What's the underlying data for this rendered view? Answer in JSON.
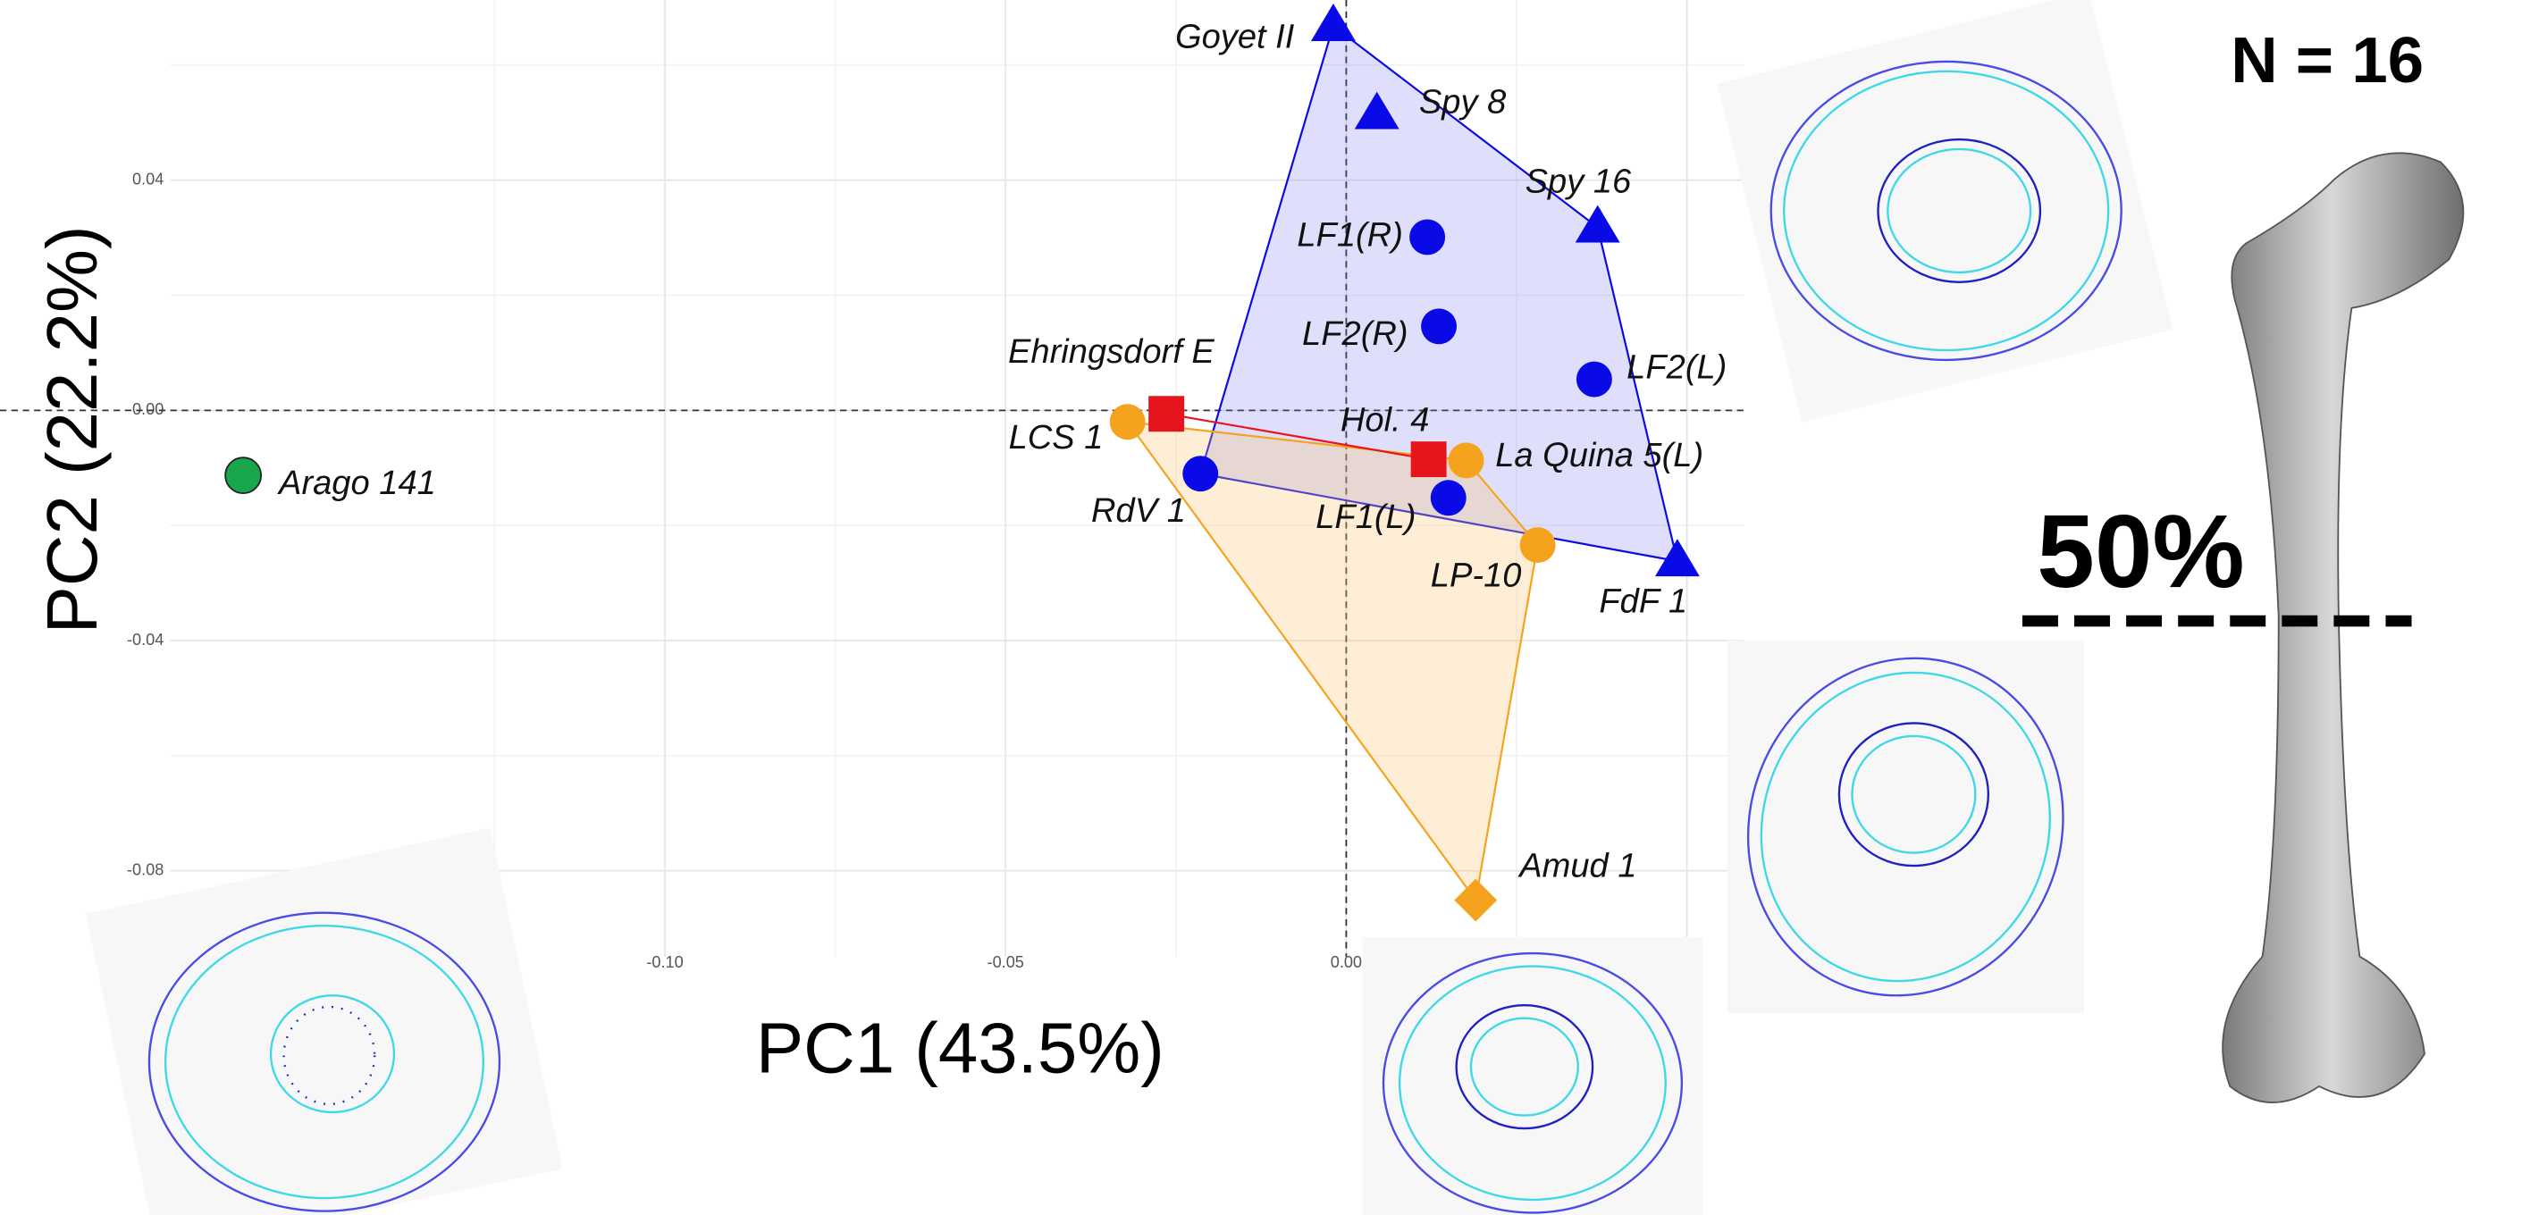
{
  "chart_data": {
    "type": "scatter",
    "xlabel": "PC1 (43.5%)",
    "ylabel": "PC2 (22.2%)",
    "xlim": [
      -0.1726,
      0.0583
    ],
    "ylim": [
      -0.0949,
      0.0713
    ],
    "xticks": [
      {
        "value": -0.1,
        "label": "-0.10"
      },
      -0.05,
      {
        "value": 0,
        "label": "0.00"
      },
      0.05
    ],
    "yticks": [
      -0.08,
      -0.04,
      {
        "value": 0,
        "label": "0.00"
      },
      0.04
    ],
    "grid": true,
    "zero_lines": true,
    "series": [
      {
        "color": "#0a0ae6",
        "hull_fill": "rgba(110,110,235,0.22)",
        "connect": "hull",
        "points": [
          {
            "label": "Goyet II",
            "x": -0.0019,
            "y": 0.0668,
            "marker": "triangle"
          },
          {
            "label": "Spy 8",
            "x": 0.0045,
            "y": 0.0515,
            "marker": "triangle"
          },
          {
            "label": "Spy 16",
            "x": 0.0369,
            "y": 0.0318,
            "marker": "triangle"
          },
          {
            "label": "FdF 1",
            "x": 0.0486,
            "y": -0.0262,
            "marker": "triangle"
          },
          {
            "label": "LF1(R)",
            "x": 0.0119,
            "y": 0.0301,
            "marker": "circle"
          },
          {
            "label": "LF2(R)",
            "x": 0.0136,
            "y": 0.0146,
            "marker": "circle"
          },
          {
            "label": "LF2(L)",
            "x": 0.0364,
            "y": 0.0054,
            "marker": "circle"
          },
          {
            "label": "RdV 1",
            "x": -0.0214,
            "y": -0.011,
            "marker": "circle"
          },
          {
            "label": "LF1(L)",
            "x": 0.015,
            "y": -0.0152,
            "marker": "circle"
          }
        ]
      },
      {
        "color": "#f5a31e",
        "hull_fill": "rgba(252,200,120,0.3)",
        "connect": "hull",
        "points": [
          {
            "label": "LCS 1",
            "x": -0.0321,
            "y": -0.002,
            "marker": "circle"
          },
          {
            "label": "La Quina 5(L)",
            "x": 0.0176,
            "y": -0.0087,
            "marker": "circle"
          },
          {
            "label": "LP-10",
            "x": 0.0281,
            "y": -0.0234,
            "marker": "circle"
          },
          {
            "label": "Amud 1",
            "x": 0.019,
            "y": -0.0851,
            "marker": "diamond"
          }
        ]
      },
      {
        "color": "#e8141b",
        "connect": "line",
        "points": [
          {
            "label": "Ehringsdorf E",
            "x": -0.0264,
            "y": -0.0006,
            "marker": "square"
          },
          {
            "label": "Hol. 4",
            "x": 0.0121,
            "y": -0.0085,
            "marker": "square"
          }
        ]
      },
      {
        "color": "#1aa64a",
        "connect": "none",
        "points": [
          {
            "label": "Arago 141",
            "x": -0.1619,
            "y": -0.0113,
            "marker": "circle"
          }
        ]
      }
    ],
    "annotations": [
      {
        "text": "N = 16"
      },
      {
        "text": "50%"
      }
    ]
  }
}
